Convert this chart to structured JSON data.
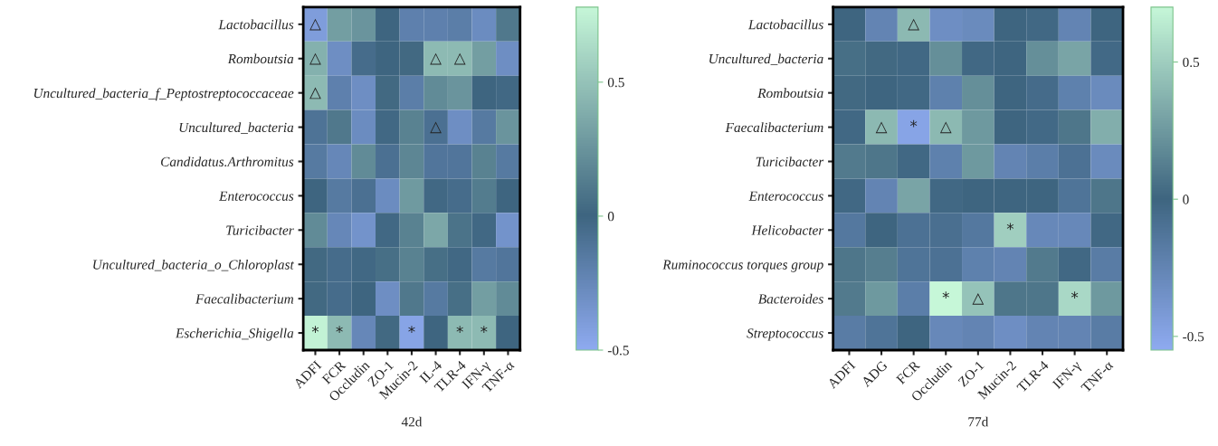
{
  "chart_data": [
    {
      "type": "heatmap",
      "xlabel": "42d",
      "categories": [
        "ADFI",
        "FCR",
        "Occludin",
        "ZO-1",
        "Mucin-2",
        "IL-4",
        "TLR-4",
        "IFN-γ",
        "TNF-α"
      ],
      "y_categories": [
        "Lactobacillus",
        "Romboutsia",
        "Uncultured_bacteria_f_Peptostreptococcaceae",
        "Uncultured_bacteria",
        "Candidatus.Arthromitus",
        "Enterococcus",
        "Turicibacter",
        "Uncultured_bacteria_o_Chloroplast",
        "Faecalibacterium",
        "Escherichia_Shigella"
      ],
      "cells": [
        [
          -0.4,
          0.3,
          0.25,
          0.0,
          -0.2,
          -0.2,
          -0.18,
          -0.28,
          0.1
        ],
        [
          0.4,
          -0.3,
          -0.05,
          0.0,
          0.02,
          0.45,
          0.45,
          0.3,
          -0.3
        ],
        [
          0.45,
          -0.2,
          -0.3,
          0.02,
          -0.18,
          0.2,
          0.25,
          0.0,
          -0.02
        ],
        [
          -0.1,
          0.1,
          -0.28,
          -0.02,
          0.15,
          -0.08,
          -0.3,
          -0.15,
          0.25
        ],
        [
          -0.15,
          -0.25,
          0.2,
          -0.08,
          0.18,
          -0.12,
          -0.12,
          0.15,
          -0.15
        ],
        [
          0.0,
          -0.15,
          -0.08,
          -0.28,
          0.28,
          -0.02,
          -0.05,
          0.12,
          0.0
        ],
        [
          0.2,
          -0.25,
          -0.33,
          -0.02,
          0.15,
          0.35,
          0.08,
          -0.02,
          -0.33
        ],
        [
          0.02,
          -0.05,
          -0.02,
          0.05,
          0.15,
          0.05,
          -0.02,
          -0.15,
          -0.12
        ],
        [
          0.02,
          -0.05,
          0.0,
          -0.3,
          0.1,
          -0.15,
          0.05,
          0.3,
          0.2
        ],
        [
          0.75,
          0.45,
          -0.25,
          0.02,
          -0.45,
          0.0,
          0.45,
          0.45,
          0.0
        ]
      ],
      "cell_labels": [
        [
          "△",
          null,
          null,
          null,
          null,
          null,
          null,
          null,
          null
        ],
        [
          "△",
          null,
          null,
          null,
          null,
          "△",
          "△",
          null,
          null
        ],
        [
          "△",
          null,
          null,
          null,
          null,
          null,
          null,
          null,
          null
        ],
        [
          null,
          null,
          null,
          null,
          null,
          "△",
          null,
          null,
          null
        ],
        [
          null,
          null,
          null,
          null,
          null,
          null,
          null,
          null,
          null
        ],
        [
          null,
          null,
          null,
          null,
          null,
          null,
          null,
          null,
          null
        ],
        [
          null,
          null,
          null,
          null,
          null,
          null,
          null,
          null,
          null
        ],
        [
          null,
          null,
          null,
          null,
          null,
          null,
          null,
          null,
          null
        ],
        [
          null,
          null,
          null,
          null,
          null,
          null,
          null,
          null,
          null
        ],
        [
          "*",
          "*",
          null,
          null,
          "*",
          null,
          "*",
          "*",
          null
        ]
      ],
      "clim": [
        -0.5,
        0.78
      ],
      "cticks": [
        -0.5,
        0,
        0.5
      ],
      "colors": [
        "#8eaaf0",
        "#3e6580",
        "#c6f7d8"
      ]
    },
    {
      "type": "heatmap",
      "xlabel": "77d",
      "categories": [
        "ADFI",
        "ADG",
        "FCR",
        "Occludin",
        "ZO-1",
        "Mucin-2",
        "TLR-4",
        "IFN-γ",
        "TNF-α"
      ],
      "y_categories": [
        "Lactobacillus",
        "Uncultured_bacteria",
        "Romboutsia",
        "Faecalibacterium",
        "Turicibacter",
        "Enterococcus",
        "Helicobacter",
        "Ruminococcus torques group",
        "Bacteroides",
        "Streptococcus"
      ],
      "cells": [
        [
          0.0,
          -0.25,
          0.4,
          -0.33,
          -0.3,
          0.0,
          -0.02,
          -0.25,
          0.0
        ],
        [
          0.05,
          0.02,
          -0.02,
          0.2,
          -0.02,
          0.0,
          0.2,
          0.3,
          -0.03
        ],
        [
          0.02,
          0.0,
          -0.02,
          -0.22,
          0.2,
          0.0,
          -0.05,
          -0.22,
          -0.3
        ],
        [
          -0.02,
          0.4,
          -0.5,
          0.4,
          0.25,
          0.0,
          -0.03,
          0.08,
          0.35
        ],
        [
          0.1,
          0.08,
          -0.02,
          -0.22,
          0.25,
          -0.25,
          -0.2,
          -0.1,
          -0.3
        ],
        [
          -0.02,
          -0.25,
          0.3,
          -0.02,
          0.0,
          0.0,
          0.0,
          -0.12,
          0.08
        ],
        [
          -0.15,
          0.0,
          -0.1,
          -0.08,
          -0.15,
          0.5,
          -0.28,
          -0.28,
          -0.02
        ],
        [
          0.08,
          0.12,
          -0.12,
          -0.1,
          -0.22,
          -0.25,
          0.1,
          -0.02,
          -0.18
        ],
        [
          0.1,
          0.25,
          -0.2,
          0.7,
          0.45,
          0.08,
          0.08,
          0.55,
          0.25
        ],
        [
          -0.18,
          -0.12,
          0.0,
          -0.28,
          -0.25,
          -0.33,
          -0.25,
          -0.25,
          -0.18
        ]
      ],
      "cell_labels": [
        [
          null,
          null,
          "△",
          null,
          null,
          null,
          null,
          null,
          null
        ],
        [
          null,
          null,
          null,
          null,
          null,
          null,
          null,
          null,
          null
        ],
        [
          null,
          null,
          null,
          null,
          null,
          null,
          null,
          null,
          null
        ],
        [
          null,
          "△",
          "*",
          "△",
          null,
          null,
          null,
          null,
          null
        ],
        [
          null,
          null,
          null,
          null,
          null,
          null,
          null,
          null,
          null
        ],
        [
          null,
          null,
          null,
          null,
          null,
          null,
          null,
          null,
          null
        ],
        [
          null,
          null,
          null,
          null,
          null,
          "*",
          null,
          null,
          null
        ],
        [
          null,
          null,
          null,
          null,
          null,
          null,
          null,
          null,
          null
        ],
        [
          null,
          null,
          null,
          "*",
          "△",
          null,
          null,
          "*",
          null
        ],
        [
          null,
          null,
          null,
          null,
          null,
          null,
          null,
          null,
          null
        ]
      ],
      "clim": [
        -0.55,
        0.7
      ],
      "cticks": [
        -0.5,
        0,
        0.5
      ],
      "colors": [
        "#8eaaf0",
        "#3e6580",
        "#c6f7d8"
      ]
    }
  ]
}
